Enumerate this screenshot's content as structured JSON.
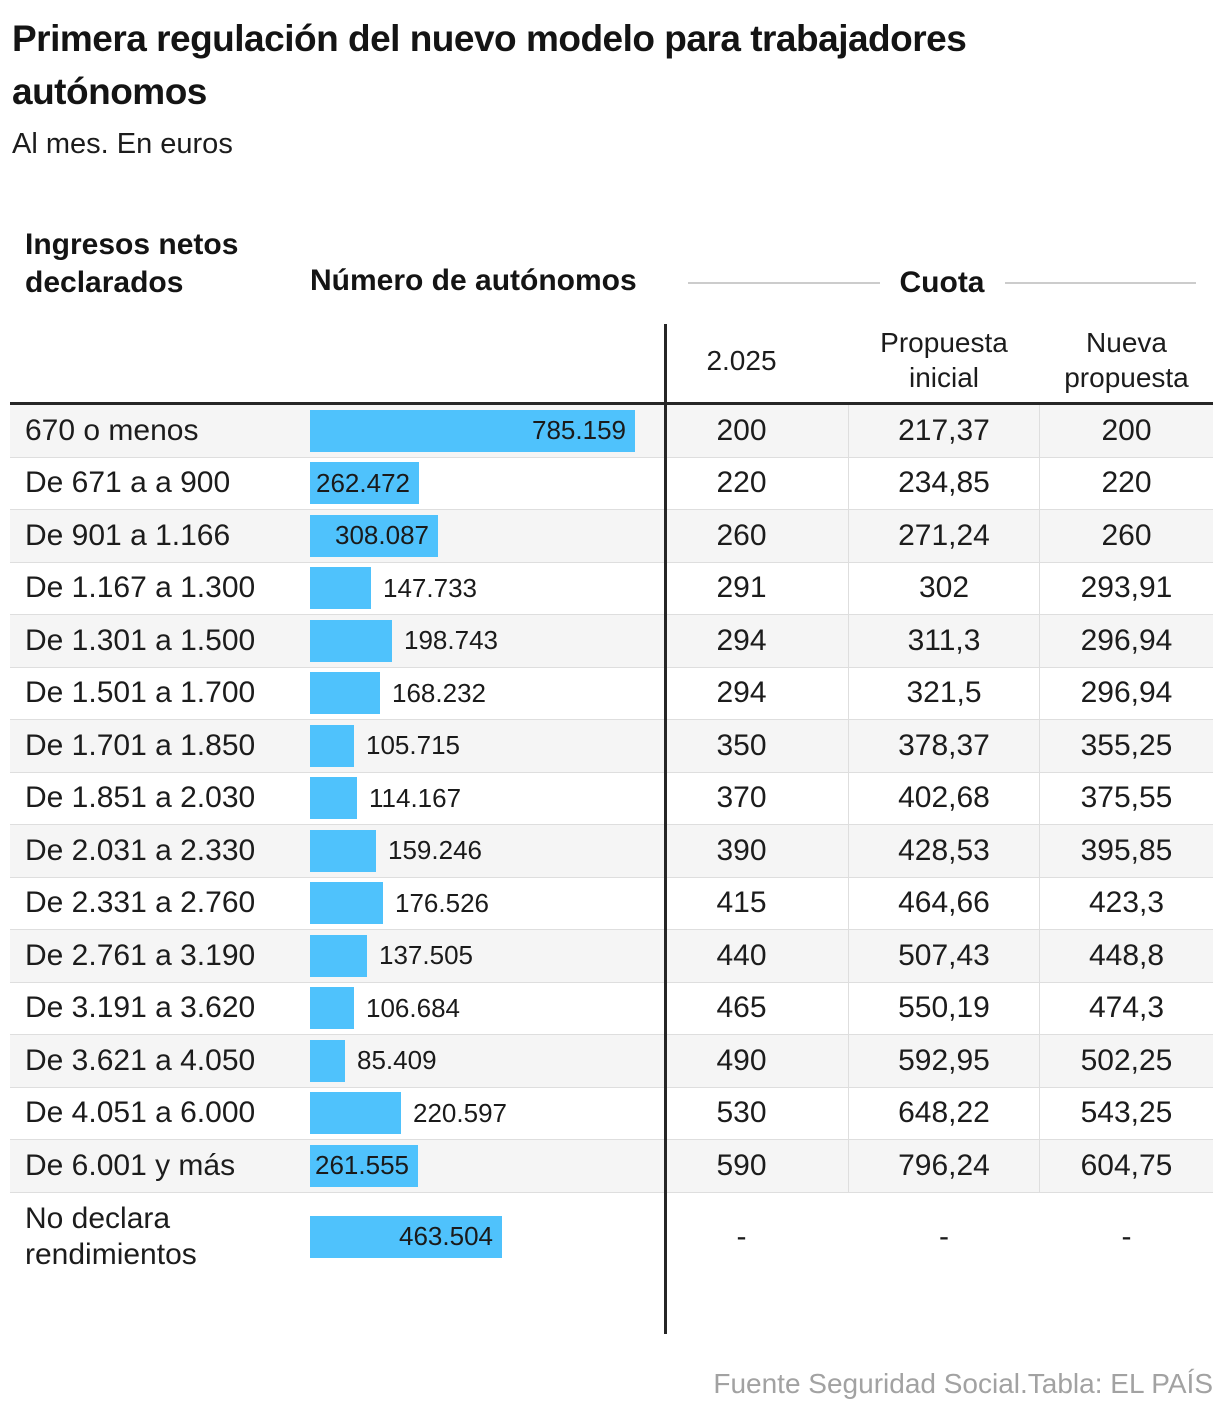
{
  "title": "Primera regulación del nuevo modelo para trabajadores autónomos",
  "subtitle": "Al mes. En euros",
  "header": {
    "income": "Ingresos netos declarados",
    "count": "Número de autónomos",
    "cuota_group": "Cuota",
    "cuota_columns": [
      "2.025",
      "Propuesta inicial",
      "Nueva propuesta"
    ]
  },
  "rows": [
    {
      "label": "670 o menos",
      "autonomos": "785.159",
      "autonomos_value": 785159,
      "cuota_2025": "200",
      "propuesta_inicial": "217,37",
      "nueva_propuesta": "200"
    },
    {
      "label": "De 671 a a 900",
      "autonomos": "262.472",
      "autonomos_value": 262472,
      "cuota_2025": "220",
      "propuesta_inicial": "234,85",
      "nueva_propuesta": "220"
    },
    {
      "label": "De 901 a 1.166",
      "autonomos": "308.087",
      "autonomos_value": 308087,
      "cuota_2025": "260",
      "propuesta_inicial": "271,24",
      "nueva_propuesta": "260"
    },
    {
      "label": "De 1.167 a 1.300",
      "autonomos": "147.733",
      "autonomos_value": 147733,
      "cuota_2025": "291",
      "propuesta_inicial": "302",
      "nueva_propuesta": "293,91"
    },
    {
      "label": "De 1.301 a 1.500",
      "autonomos": "198.743",
      "autonomos_value": 198743,
      "cuota_2025": "294",
      "propuesta_inicial": "311,3",
      "nueva_propuesta": "296,94"
    },
    {
      "label": "De 1.501 a 1.700",
      "autonomos": "168.232",
      "autonomos_value": 168232,
      "cuota_2025": "294",
      "propuesta_inicial": "321,5",
      "nueva_propuesta": "296,94"
    },
    {
      "label": "De 1.701 a 1.850",
      "autonomos": "105.715",
      "autonomos_value": 105715,
      "cuota_2025": "350",
      "propuesta_inicial": "378,37",
      "nueva_propuesta": "355,25"
    },
    {
      "label": "De 1.851 a 2.030",
      "autonomos": "114.167",
      "autonomos_value": 114167,
      "cuota_2025": "370",
      "propuesta_inicial": "402,68",
      "nueva_propuesta": "375,55"
    },
    {
      "label": "De 2.031 a 2.330",
      "autonomos": "159.246",
      "autonomos_value": 159246,
      "cuota_2025": "390",
      "propuesta_inicial": "428,53",
      "nueva_propuesta": "395,85"
    },
    {
      "label": "De 2.331 a 2.760",
      "autonomos": "176.526",
      "autonomos_value": 176526,
      "cuota_2025": "415",
      "propuesta_inicial": "464,66",
      "nueva_propuesta": "423,3"
    },
    {
      "label": "De 2.761 a 3.190",
      "autonomos": "137.505",
      "autonomos_value": 137505,
      "cuota_2025": "440",
      "propuesta_inicial": "507,43",
      "nueva_propuesta": "448,8"
    },
    {
      "label": "De 3.191 a 3.620",
      "autonomos": "106.684",
      "autonomos_value": 106684,
      "cuota_2025": "465",
      "propuesta_inicial": "550,19",
      "nueva_propuesta": "474,3"
    },
    {
      "label": "De 3.621 a 4.050",
      "autonomos": "85.409",
      "autonomos_value": 85409,
      "cuota_2025": "490",
      "propuesta_inicial": "592,95",
      "nueva_propuesta": "502,25"
    },
    {
      "label": "De 4.051 a 6.000",
      "autonomos": "220.597",
      "autonomos_value": 220597,
      "cuota_2025": "530",
      "propuesta_inicial": "648,22",
      "nueva_propuesta": "543,25"
    },
    {
      "label": "De 6.001 y más",
      "autonomos": "261.555",
      "autonomos_value": 261555,
      "cuota_2025": "590",
      "propuesta_inicial": "796,24",
      "nueva_propuesta": "604,75"
    },
    {
      "label": "No declara rendimientos",
      "autonomos": "463.504",
      "autonomos_value": 463504,
      "cuota_2025": "-",
      "propuesta_inicial": "-",
      "nueva_propuesta": "-"
    }
  ],
  "footer": "Fuente Seguridad Social.Tabla: EL PAÍS",
  "colors": {
    "bar": "#4fc2fc",
    "row_alt": "#f5f5f5",
    "divider_dark": "#262626",
    "divider_light": "#dedede"
  },
  "chart_data": {
    "type": "bar",
    "title": "Primera regulación del nuevo modelo para trabajadores autónomos",
    "subtitle": "Al mes. En euros",
    "orientation": "horizontal",
    "categories": [
      "670 o menos",
      "De 671 a a 900",
      "De 901 a 1.166",
      "De 1.167 a 1.300",
      "De 1.301 a 1.500",
      "De 1.501 a 1.700",
      "De 1.701 a 1.850",
      "De 1.851 a 2.030",
      "De 2.031 a 2.330",
      "De 2.331 a 2.760",
      "De 2.761 a 3.190",
      "De 3.191 a 3.620",
      "De 3.621 a 4.050",
      "De 4.051 a 6.000",
      "De 6.001 y más",
      "No declara rendimientos"
    ],
    "series": [
      {
        "name": "Número de autónomos",
        "values": [
          785159,
          262472,
          308087,
          147733,
          198743,
          168232,
          105715,
          114167,
          159246,
          176526,
          137505,
          106684,
          85409,
          220597,
          261555,
          463504
        ]
      },
      {
        "name": "Cuota 2.025",
        "values": [
          200,
          220,
          260,
          291,
          294,
          294,
          350,
          370,
          390,
          415,
          440,
          465,
          490,
          530,
          590,
          null
        ]
      },
      {
        "name": "Cuota propuesta inicial",
        "values": [
          217.37,
          234.85,
          271.24,
          302,
          311.3,
          321.5,
          378.37,
          402.68,
          428.53,
          464.66,
          507.43,
          550.19,
          592.95,
          648.22,
          796.24,
          null
        ]
      },
      {
        "name": "Cuota nueva propuesta",
        "values": [
          200,
          220,
          260,
          293.91,
          296.94,
          296.94,
          355.25,
          375.55,
          395.85,
          423.3,
          448.8,
          474.3,
          502.25,
          543.25,
          604.75,
          null
        ]
      }
    ],
    "xlim": [
      0,
      785159
    ],
    "grid": false,
    "legend_position": "none"
  }
}
